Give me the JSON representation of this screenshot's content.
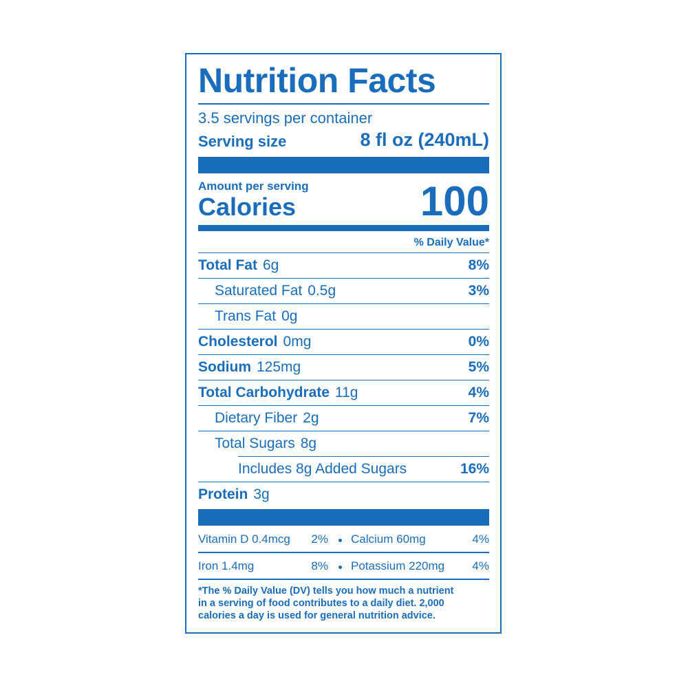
{
  "header": {
    "title": "Nutrition Facts",
    "servings": "3.5 servings per container",
    "serving_size_label": "Serving size",
    "serving_size": "8 fl oz (240mL)"
  },
  "calories": {
    "amount_label": "Amount per serving",
    "label": "Calories",
    "value": "100"
  },
  "daily_value_header": "% Daily Value*",
  "nutrients": [
    {
      "name": "Total Fat",
      "amount": "6g",
      "dv": "8%"
    },
    {
      "name": "Saturated Fat",
      "amount": "0.5g",
      "dv": "3%"
    },
    {
      "name": "Trans Fat",
      "amount": "0g"
    },
    {
      "name": "Cholesterol",
      "amount": "0mg",
      "dv": "0%"
    },
    {
      "name": "Sodium",
      "amount": "125mg",
      "dv": "5%"
    },
    {
      "name": "Total Carbohydrate",
      "amount": "11g",
      "dv": "4%"
    },
    {
      "name": "Dietary Fiber",
      "amount": "2g",
      "dv": "7%"
    },
    {
      "name": "Total Sugars",
      "amount": "8g"
    },
    {
      "name": "Includes 8g Added Sugars",
      "dv": "16%"
    },
    {
      "name": "Protein",
      "amount": "3g"
    }
  ],
  "vitamins": [
    {
      "name": "Vitamin D",
      "amount": "0.4mcg",
      "dv": "2%"
    },
    {
      "name": "Calcium",
      "amount": "60mg",
      "dv": "4%"
    },
    {
      "name": "Iron",
      "amount": "1.4mg",
      "dv": "8%"
    },
    {
      "name": "Potassium",
      "amount": "220mg",
      "dv": "4%"
    }
  ],
  "footnote": [
    "*The % Daily Value (DV) tells you how much a nutrient",
    "in a serving of food contributes to a daily diet. 2,000",
    "calories a day is used for general nutrition advice."
  ]
}
